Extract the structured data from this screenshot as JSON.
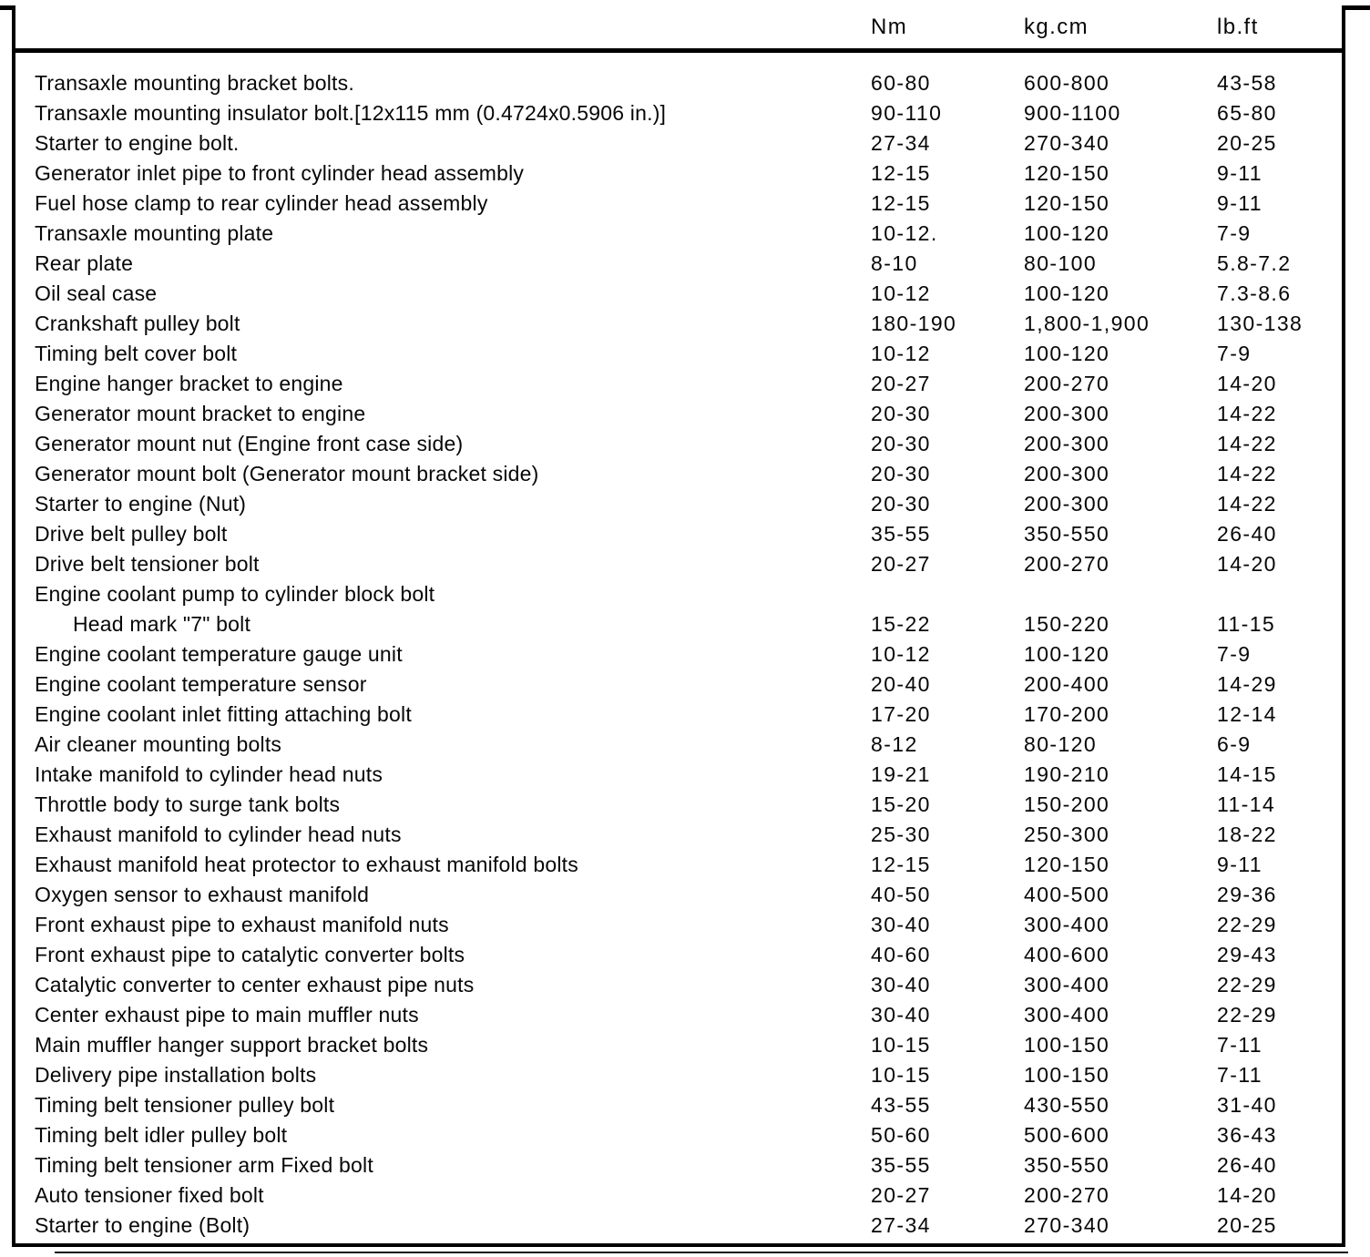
{
  "table": {
    "headers": {
      "item": "",
      "nm": "Nm",
      "kgcm": "kg.cm",
      "lbft": "lb.ft"
    },
    "rows": [
      {
        "label": "Transaxle mounting bracket bolts.",
        "nm": "60-80",
        "kgcm": "600-800",
        "lbft": "43-58",
        "indent": false
      },
      {
        "label": "Transaxle mounting insulator bolt.[12x115 mm (0.4724x0.5906 in.)]",
        "nm": "90-110",
        "kgcm": "900-1100",
        "lbft": "65-80",
        "indent": false
      },
      {
        "label": "Starter to engine bolt.",
        "nm": "27-34",
        "kgcm": "270-340",
        "lbft": "20-25",
        "indent": false
      },
      {
        "label": "Generator inlet pipe to front cylinder head assembly",
        "nm": "12-15",
        "kgcm": "120-150",
        "lbft": "9-11",
        "indent": false
      },
      {
        "label": "Fuel hose clamp to rear cylinder head assembly",
        "nm": "12-15",
        "kgcm": "120-150",
        "lbft": "9-11",
        "indent": false
      },
      {
        "label": "Transaxle mounting plate",
        "nm": "10-12.",
        "kgcm": "100-120",
        "lbft": "7-9",
        "indent": false
      },
      {
        "label": "Rear plate",
        "nm": "8-10",
        "kgcm": "80-100",
        "lbft": "5.8-7.2",
        "indent": false
      },
      {
        "label": "Oil seal case",
        "nm": "10-12",
        "kgcm": "100-120",
        "lbft": "7.3-8.6",
        "indent": false
      },
      {
        "label": "Crankshaft pulley bolt",
        "nm": "180-190",
        "kgcm": "1,800-1,900",
        "lbft": "130-138",
        "indent": false
      },
      {
        "label": "Timing belt cover bolt",
        "nm": "10-12",
        "kgcm": "100-120",
        "lbft": "7-9",
        "indent": false
      },
      {
        "label": "Engine hanger bracket to engine",
        "nm": "20-27",
        "kgcm": "200-270",
        "lbft": "14-20",
        "indent": false
      },
      {
        "label": "Generator mount bracket to engine",
        "nm": "20-30",
        "kgcm": "200-300",
        "lbft": "14-22",
        "indent": false
      },
      {
        "label": "Generator mount nut (Engine front case side)",
        "nm": "20-30",
        "kgcm": "200-300",
        "lbft": "14-22",
        "indent": false
      },
      {
        "label": "Generator mount bolt (Generator mount bracket side)",
        "nm": "20-30",
        "kgcm": "200-300",
        "lbft": "14-22",
        "indent": false
      },
      {
        "label": "Starter to engine (Nut)",
        "nm": "20-30",
        "kgcm": "200-300",
        "lbft": "14-22",
        "indent": false
      },
      {
        "label": "Drive belt pulley bolt",
        "nm": "35-55",
        "kgcm": "350-550",
        "lbft": "26-40",
        "indent": false
      },
      {
        "label": "Drive belt tensioner bolt",
        "nm": "20-27",
        "kgcm": "200-270",
        "lbft": "14-20",
        "indent": false
      },
      {
        "label": "Engine coolant pump to cylinder block bolt",
        "nm": "",
        "kgcm": "",
        "lbft": "",
        "indent": false
      },
      {
        "label": "Head mark \"7\" bolt",
        "nm": "15-22",
        "kgcm": "150-220",
        "lbft": "11-15",
        "indent": true
      },
      {
        "label": "Engine coolant temperature gauge unit",
        "nm": "10-12",
        "kgcm": "100-120",
        "lbft": "7-9",
        "indent": false
      },
      {
        "label": "Engine coolant temperature sensor",
        "nm": "20-40",
        "kgcm": "200-400",
        "lbft": "14-29",
        "indent": false
      },
      {
        "label": "Engine coolant inlet fitting attaching bolt",
        "nm": "17-20",
        "kgcm": "170-200",
        "lbft": "12-14",
        "indent": false
      },
      {
        "label": "Air cleaner mounting bolts",
        "nm": "8-12",
        "kgcm": "80-120",
        "lbft": "6-9",
        "indent": false
      },
      {
        "label": "Intake manifold to cylinder head nuts",
        "nm": "19-21",
        "kgcm": "190-210",
        "lbft": "14-15",
        "indent": false
      },
      {
        "label": "Throttle body to surge tank bolts",
        "nm": "15-20",
        "kgcm": "150-200",
        "lbft": "11-14",
        "indent": false
      },
      {
        "label": "Exhaust manifold to cylinder head nuts",
        "nm": "25-30",
        "kgcm": "250-300",
        "lbft": "18-22",
        "indent": false
      },
      {
        "label": "Exhaust manifold heat protector to exhaust manifold bolts",
        "nm": "12-15",
        "kgcm": "120-150",
        "lbft": "9-11",
        "indent": false
      },
      {
        "label": "Oxygen sensor to exhaust manifold",
        "nm": "40-50",
        "kgcm": "400-500",
        "lbft": "29-36",
        "indent": false
      },
      {
        "label": "Front exhaust pipe to exhaust manifold nuts",
        "nm": "30-40",
        "kgcm": "300-400",
        "lbft": "22-29",
        "indent": false
      },
      {
        "label": "Front exhaust pipe to catalytic converter bolts",
        "nm": "40-60",
        "kgcm": "400-600",
        "lbft": "29-43",
        "indent": false
      },
      {
        "label": "Catalytic converter to center exhaust pipe nuts",
        "nm": "30-40",
        "kgcm": "300-400",
        "lbft": "22-29",
        "indent": false
      },
      {
        "label": "Center exhaust pipe to main muffler nuts",
        "nm": "30-40",
        "kgcm": "300-400",
        "lbft": "22-29",
        "indent": false
      },
      {
        "label": "Main muffler hanger support bracket bolts",
        "nm": "10-15",
        "kgcm": "100-150",
        "lbft": "7-11",
        "indent": false
      },
      {
        "label": "Delivery pipe installation bolts",
        "nm": "10-15",
        "kgcm": "100-150",
        "lbft": "7-11",
        "indent": false
      },
      {
        "label": "Timing belt tensioner pulley bolt",
        "nm": "43-55",
        "kgcm": "430-550",
        "lbft": "31-40",
        "indent": false
      },
      {
        "label": "Timing belt idler pulley bolt",
        "nm": "50-60",
        "kgcm": "500-600",
        "lbft": "36-43",
        "indent": false
      },
      {
        "label": "Timing belt tensioner arm Fixed bolt",
        "nm": "35-55",
        "kgcm": "350-550",
        "lbft": "26-40",
        "indent": false
      },
      {
        "label": "Auto tensioner fixed bolt",
        "nm": "20-27",
        "kgcm": "200-270",
        "lbft": "14-20",
        "indent": false
      },
      {
        "label": "Starter to engine (Bolt)",
        "nm": "27-34",
        "kgcm": "270-340",
        "lbft": "20-25",
        "indent": false
      }
    ]
  }
}
